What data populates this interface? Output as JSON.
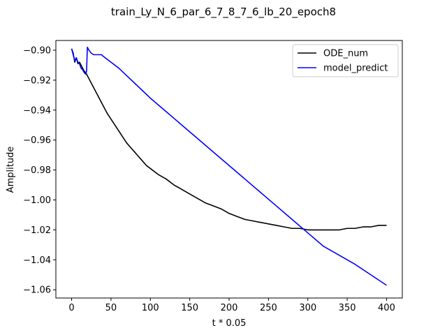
{
  "chart_data": {
    "type": "line",
    "title": "train_Ly_N_6_par_6_7_8_7_6_lb_20_epoch8",
    "xlabel": "t * 0.05",
    "ylabel": "Amplitude",
    "xlim": [
      -20,
      420
    ],
    "ylim": [
      -1.0655,
      -0.8935
    ],
    "xticks": [
      0,
      50,
      100,
      150,
      200,
      250,
      300,
      350,
      400
    ],
    "yticks": [
      -1.06,
      -1.04,
      -1.02,
      -1.0,
      -0.98,
      -0.96,
      -0.94,
      -0.92,
      -0.9
    ],
    "ytick_labels": [
      "−1.06",
      "−1.04",
      "−1.02",
      "−1.00",
      "−0.98",
      "−0.96",
      "−0.94",
      "−0.92",
      "−0.90"
    ],
    "legend_position": "top-right",
    "grid": false,
    "series": [
      {
        "name": "ODE_num",
        "color": "#000000",
        "x": [
          0,
          2,
          4,
          6,
          8,
          10,
          12,
          14,
          16,
          18,
          20,
          25,
          30,
          35,
          40,
          45,
          50,
          55,
          60,
          65,
          70,
          75,
          80,
          85,
          90,
          95,
          100,
          110,
          120,
          130,
          140,
          150,
          160,
          170,
          180,
          190,
          200,
          210,
          220,
          230,
          240,
          250,
          260,
          270,
          280,
          290,
          300,
          310,
          320,
          330,
          340,
          350,
          360,
          370,
          380,
          390,
          400
        ],
        "y": [
          -0.899,
          -0.902,
          -0.908,
          -0.905,
          -0.909,
          -0.908,
          -0.91,
          -0.912,
          -0.914,
          -0.915,
          -0.917,
          -0.922,
          -0.927,
          -0.932,
          -0.937,
          -0.942,
          -0.946,
          -0.95,
          -0.954,
          -0.958,
          -0.962,
          -0.965,
          -0.968,
          -0.971,
          -0.974,
          -0.977,
          -0.979,
          -0.983,
          -0.986,
          -0.99,
          -0.993,
          -0.996,
          -0.999,
          -1.002,
          -1.004,
          -1.006,
          -1.009,
          -1.011,
          -1.013,
          -1.014,
          -1.015,
          -1.016,
          -1.017,
          -1.018,
          -1.019,
          -1.019,
          -1.02,
          -1.02,
          -1.02,
          -1.02,
          -1.02,
          -1.019,
          -1.019,
          -1.018,
          -1.018,
          -1.017,
          -1.017
        ]
      },
      {
        "name": "model_predict",
        "color": "#0000ff",
        "x": [
          0,
          2,
          4,
          6,
          8,
          10,
          12,
          14,
          16,
          18,
          19,
          20,
          22,
          25,
          28,
          30,
          35,
          38,
          40,
          45,
          50,
          60,
          70,
          80,
          90,
          100,
          120,
          140,
          160,
          180,
          200,
          220,
          240,
          260,
          280,
          300,
          320,
          340,
          360,
          380,
          400
        ],
        "y": [
          -0.899,
          -0.903,
          -0.907,
          -0.905,
          -0.908,
          -0.909,
          -0.912,
          -0.913,
          -0.915,
          -0.916,
          -0.914,
          -0.898,
          -0.9,
          -0.902,
          -0.903,
          -0.903,
          -0.903,
          -0.903,
          -0.904,
          -0.906,
          -0.908,
          -0.912,
          -0.917,
          -0.922,
          -0.927,
          -0.932,
          -0.941,
          -0.95,
          -0.959,
          -0.968,
          -0.977,
          -0.986,
          -0.995,
          -1.004,
          -1.013,
          -1.022,
          -1.031,
          -1.037,
          -1.043,
          -1.05,
          -1.057
        ]
      }
    ]
  }
}
